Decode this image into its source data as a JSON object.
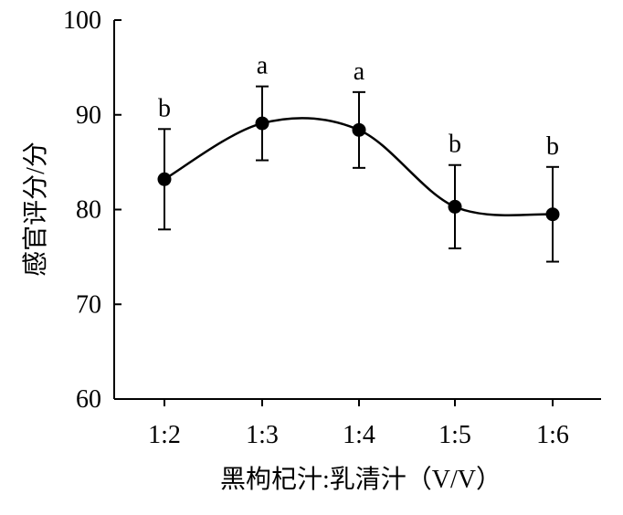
{
  "chart_data": {
    "type": "line",
    "title": "",
    "xlabel": "黑枸杞汁:乳清汁（V/V）",
    "ylabel": "感官评分/分",
    "categories": [
      "1:2",
      "1:3",
      "1:4",
      "1:5",
      "1:6"
    ],
    "series": [
      {
        "values": [
          83.2,
          89.1,
          88.4,
          80.3,
          79.5
        ],
        "error": [
          5.3,
          3.9,
          4.0,
          4.4,
          5.0
        ],
        "significance": [
          "b",
          "a",
          "a",
          "b",
          "b"
        ]
      }
    ],
    "ylim": [
      60,
      100
    ],
    "yticks": [
      60,
      70,
      80,
      90,
      100
    ],
    "grid": false,
    "smooth": true,
    "colors": {
      "line": "#000000",
      "marker": "#000000"
    }
  }
}
